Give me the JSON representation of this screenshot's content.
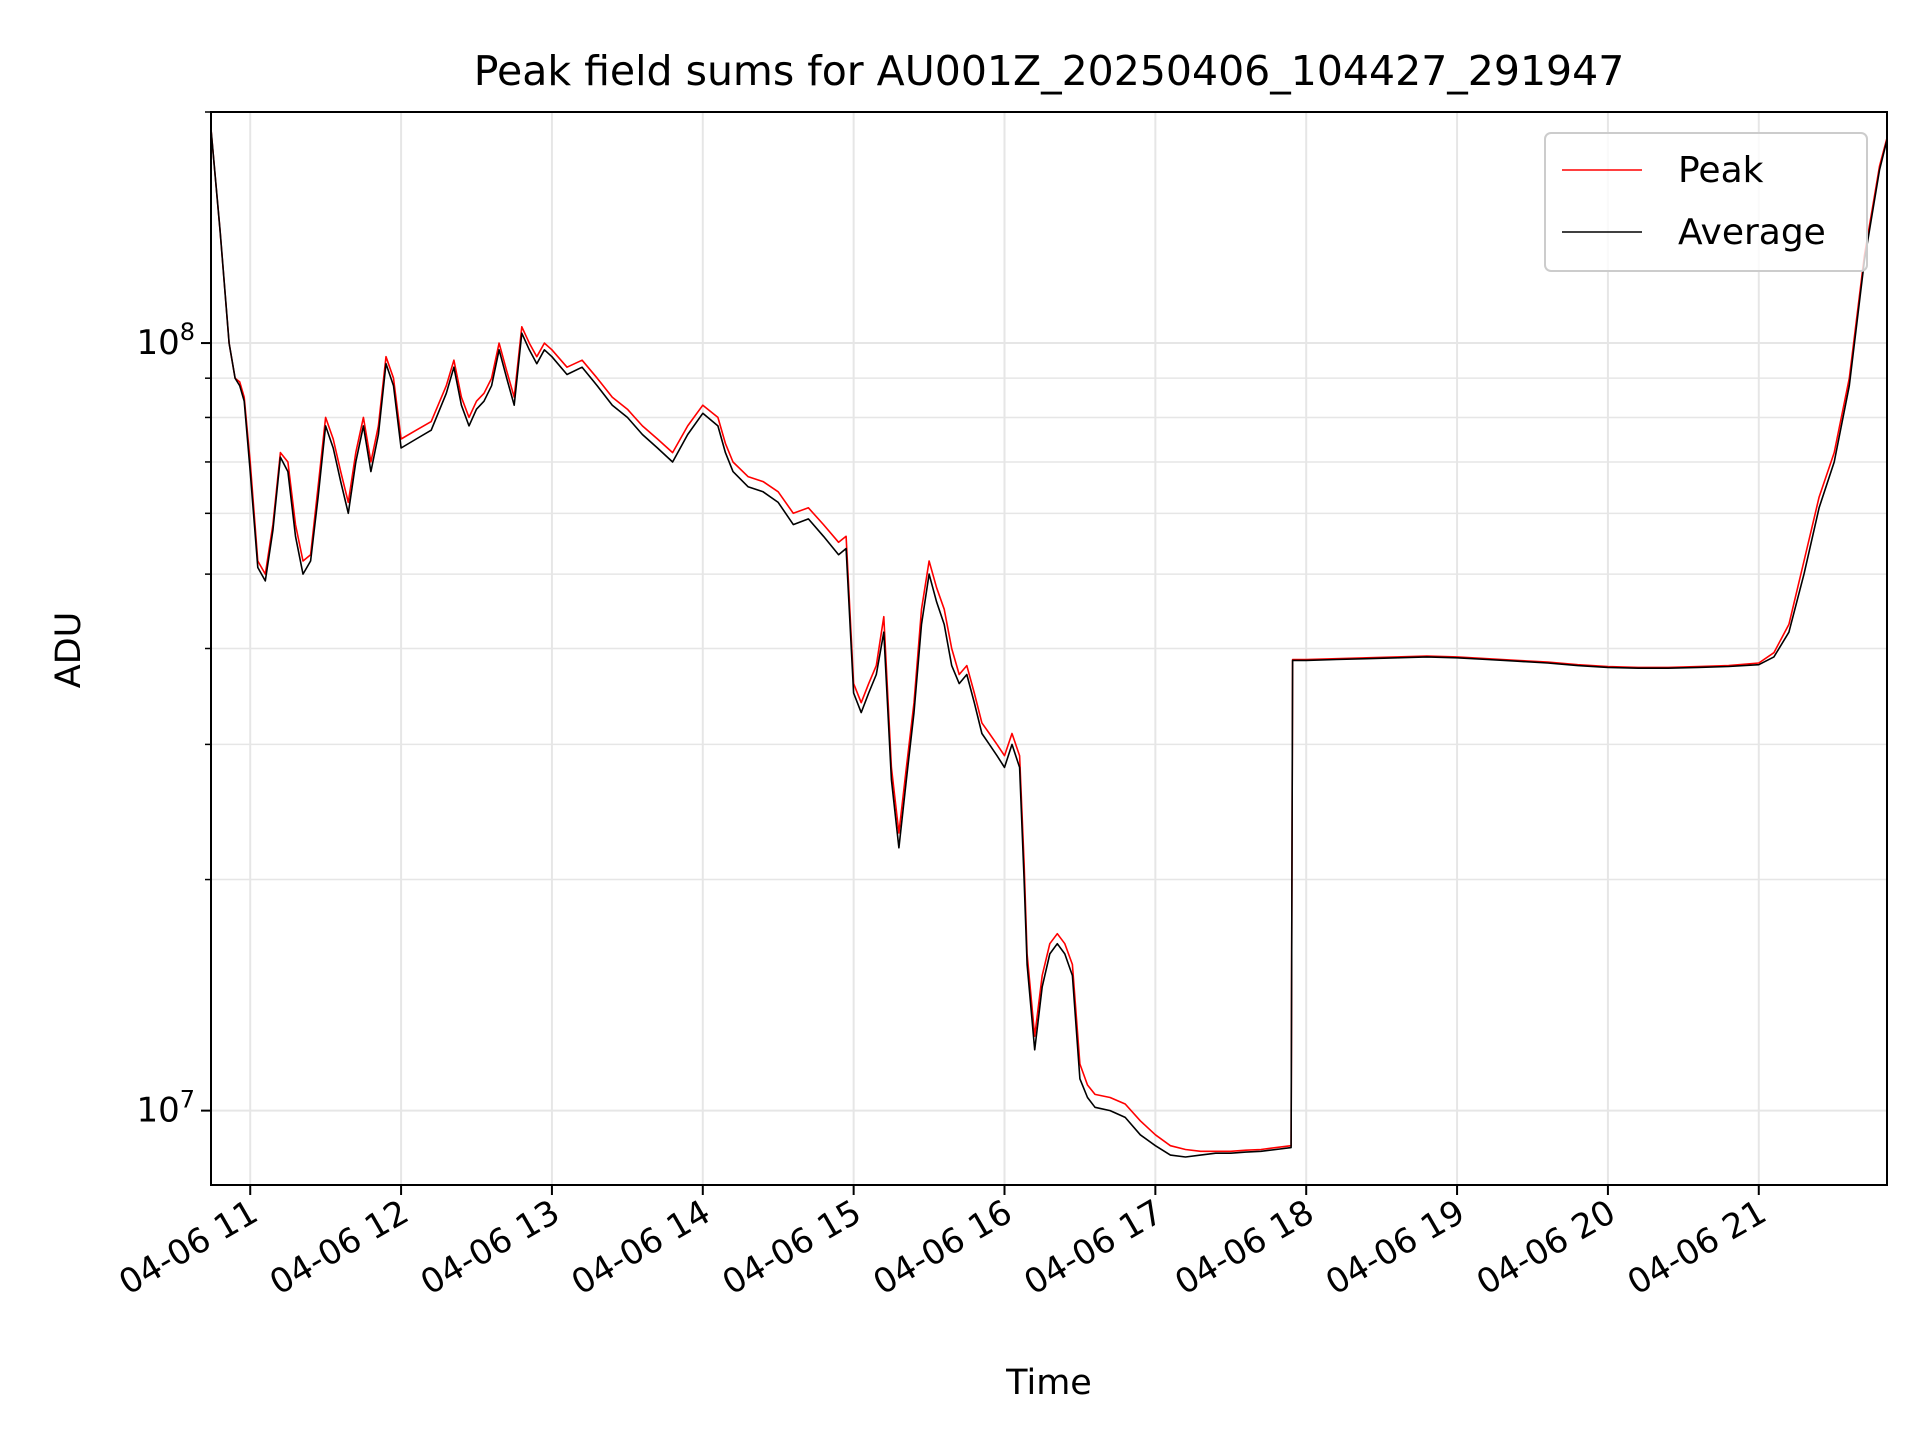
{
  "chart_data": {
    "type": "line",
    "title": "Peak field sums for AU001Z_20250406_104427_291947",
    "xlabel": "Time",
    "ylabel": "ADU",
    "yscale": "log",
    "ylim": [
      8000000,
      200000000
    ],
    "xlim_hours": [
      10.74,
      21.85
    ],
    "grid": true,
    "legend_position": "top-right",
    "x_tick_hours": [
      11,
      12,
      13,
      14,
      15,
      16,
      17,
      18,
      19,
      20,
      21
    ],
    "x_tick_labels": [
      "04-06 11",
      "04-06 12",
      "04-06 13",
      "04-06 14",
      "04-06 15",
      "04-06 16",
      "04-06 17",
      "04-06 18",
      "04-06 19",
      "04-06 20",
      "04-06 21"
    ],
    "y_major_ticks": [
      {
        "value": 10000000,
        "base": "10",
        "exp": "7"
      },
      {
        "value": 100000000,
        "base": "10",
        "exp": "8"
      }
    ],
    "series": [
      {
        "name": "Peak",
        "color": "#ff0000",
        "points": [
          [
            10.74,
            190000000
          ],
          [
            10.8,
            140000000
          ],
          [
            10.86,
            100000000
          ],
          [
            10.9,
            90000000
          ],
          [
            10.93,
            89000000
          ],
          [
            10.96,
            85000000
          ],
          [
            11.0,
            70000000
          ],
          [
            11.05,
            52000000
          ],
          [
            11.1,
            50000000
          ],
          [
            11.15,
            58000000
          ],
          [
            11.2,
            72000000
          ],
          [
            11.25,
            70000000
          ],
          [
            11.3,
            58000000
          ],
          [
            11.35,
            52000000
          ],
          [
            11.4,
            53000000
          ],
          [
            11.45,
            65000000
          ],
          [
            11.5,
            80000000
          ],
          [
            11.55,
            75000000
          ],
          [
            11.6,
            68000000
          ],
          [
            11.65,
            62000000
          ],
          [
            11.7,
            72000000
          ],
          [
            11.75,
            80000000
          ],
          [
            11.8,
            70000000
          ],
          [
            11.85,
            78000000
          ],
          [
            11.9,
            96000000
          ],
          [
            11.95,
            90000000
          ],
          [
            12.0,
            75000000
          ],
          [
            12.1,
            77000000
          ],
          [
            12.2,
            79000000
          ],
          [
            12.3,
            88000000
          ],
          [
            12.35,
            95000000
          ],
          [
            12.4,
            85000000
          ],
          [
            12.45,
            80000000
          ],
          [
            12.5,
            84000000
          ],
          [
            12.55,
            86000000
          ],
          [
            12.6,
            90000000
          ],
          [
            12.65,
            100000000
          ],
          [
            12.7,
            92000000
          ],
          [
            12.75,
            85000000
          ],
          [
            12.8,
            105000000
          ],
          [
            12.85,
            100000000
          ],
          [
            12.9,
            96000000
          ],
          [
            12.95,
            100000000
          ],
          [
            13.0,
            98000000
          ],
          [
            13.1,
            93000000
          ],
          [
            13.2,
            95000000
          ],
          [
            13.3,
            90000000
          ],
          [
            13.4,
            85000000
          ],
          [
            13.5,
            82000000
          ],
          [
            13.6,
            78000000
          ],
          [
            13.7,
            75000000
          ],
          [
            13.8,
            72000000
          ],
          [
            13.9,
            78000000
          ],
          [
            14.0,
            83000000
          ],
          [
            14.1,
            80000000
          ],
          [
            14.15,
            74000000
          ],
          [
            14.2,
            70000000
          ],
          [
            14.3,
            67000000
          ],
          [
            14.4,
            66000000
          ],
          [
            14.5,
            64000000
          ],
          [
            14.6,
            60000000
          ],
          [
            14.7,
            61000000
          ],
          [
            14.8,
            58000000
          ],
          [
            14.9,
            55000000
          ],
          [
            14.95,
            56000000
          ],
          [
            15.0,
            36000000
          ],
          [
            15.05,
            34000000
          ],
          [
            15.1,
            36000000
          ],
          [
            15.15,
            38000000
          ],
          [
            15.2,
            44000000
          ],
          [
            15.25,
            28000000
          ],
          [
            15.3,
            23000000
          ],
          [
            15.35,
            28000000
          ],
          [
            15.4,
            34000000
          ],
          [
            15.45,
            45000000
          ],
          [
            15.5,
            52000000
          ],
          [
            15.55,
            48000000
          ],
          [
            15.6,
            45000000
          ],
          [
            15.65,
            40000000
          ],
          [
            15.7,
            37000000
          ],
          [
            15.75,
            38000000
          ],
          [
            15.8,
            35000000
          ],
          [
            15.85,
            32000000
          ],
          [
            15.9,
            31000000
          ],
          [
            15.95,
            30000000
          ],
          [
            16.0,
            29000000
          ],
          [
            16.05,
            31000000
          ],
          [
            16.1,
            29000000
          ],
          [
            16.13,
            21000000
          ],
          [
            16.15,
            16000000
          ],
          [
            16.2,
            12500000
          ],
          [
            16.25,
            15000000
          ],
          [
            16.3,
            16500000
          ],
          [
            16.35,
            17000000
          ],
          [
            16.4,
            16500000
          ],
          [
            16.45,
            15500000
          ],
          [
            16.5,
            11500000
          ],
          [
            16.55,
            10800000
          ],
          [
            16.6,
            10500000
          ],
          [
            16.7,
            10400000
          ],
          [
            16.8,
            10200000
          ],
          [
            16.9,
            9700000
          ],
          [
            17.0,
            9300000
          ],
          [
            17.1,
            9000000
          ],
          [
            17.2,
            8900000
          ],
          [
            17.3,
            8850000
          ],
          [
            17.4,
            8850000
          ],
          [
            17.5,
            8850000
          ],
          [
            17.6,
            8880000
          ],
          [
            17.7,
            8900000
          ],
          [
            17.8,
            8950000
          ],
          [
            17.9,
            9000000
          ],
          [
            17.91,
            38700000
          ],
          [
            18.0,
            38700000
          ],
          [
            18.2,
            38800000
          ],
          [
            18.4,
            38900000
          ],
          [
            18.6,
            39000000
          ],
          [
            18.8,
            39100000
          ],
          [
            19.0,
            39000000
          ],
          [
            19.2,
            38800000
          ],
          [
            19.4,
            38600000
          ],
          [
            19.6,
            38400000
          ],
          [
            19.8,
            38100000
          ],
          [
            20.0,
            37900000
          ],
          [
            20.2,
            37800000
          ],
          [
            20.4,
            37800000
          ],
          [
            20.6,
            37900000
          ],
          [
            20.8,
            38000000
          ],
          [
            21.0,
            38300000
          ],
          [
            21.1,
            39500000
          ],
          [
            21.2,
            43000000
          ],
          [
            21.3,
            52000000
          ],
          [
            21.4,
            63000000
          ],
          [
            21.5,
            72000000
          ],
          [
            21.6,
            90000000
          ],
          [
            21.7,
            130000000
          ],
          [
            21.8,
            170000000
          ],
          [
            21.85,
            185000000
          ]
        ]
      },
      {
        "name": "Average",
        "color": "#000000",
        "points": [
          [
            10.74,
            190000000
          ],
          [
            10.8,
            140000000
          ],
          [
            10.86,
            100000000
          ],
          [
            10.9,
            90000000
          ],
          [
            10.93,
            88000000
          ],
          [
            10.96,
            84000000
          ],
          [
            11.0,
            68000000
          ],
          [
            11.05,
            51000000
          ],
          [
            11.1,
            49000000
          ],
          [
            11.15,
            57000000
          ],
          [
            11.2,
            71000000
          ],
          [
            11.25,
            68000000
          ],
          [
            11.3,
            56000000
          ],
          [
            11.35,
            50000000
          ],
          [
            11.4,
            52000000
          ],
          [
            11.45,
            63000000
          ],
          [
            11.5,
            78000000
          ],
          [
            11.55,
            73000000
          ],
          [
            11.6,
            66000000
          ],
          [
            11.65,
            60000000
          ],
          [
            11.7,
            70000000
          ],
          [
            11.75,
            78000000
          ],
          [
            11.8,
            68000000
          ],
          [
            11.85,
            76000000
          ],
          [
            11.9,
            94000000
          ],
          [
            11.95,
            88000000
          ],
          [
            12.0,
            73000000
          ],
          [
            12.1,
            75000000
          ],
          [
            12.2,
            77000000
          ],
          [
            12.3,
            86000000
          ],
          [
            12.35,
            93000000
          ],
          [
            12.4,
            83000000
          ],
          [
            12.45,
            78000000
          ],
          [
            12.5,
            82000000
          ],
          [
            12.55,
            84000000
          ],
          [
            12.6,
            88000000
          ],
          [
            12.65,
            98000000
          ],
          [
            12.7,
            90000000
          ],
          [
            12.75,
            83000000
          ],
          [
            12.8,
            103000000
          ],
          [
            12.85,
            98000000
          ],
          [
            12.9,
            94000000
          ],
          [
            12.95,
            98000000
          ],
          [
            13.0,
            96000000
          ],
          [
            13.1,
            91000000
          ],
          [
            13.2,
            93000000
          ],
          [
            13.3,
            88000000
          ],
          [
            13.4,
            83000000
          ],
          [
            13.5,
            80000000
          ],
          [
            13.6,
            76000000
          ],
          [
            13.7,
            73000000
          ],
          [
            13.8,
            70000000
          ],
          [
            13.9,
            76000000
          ],
          [
            14.0,
            81000000
          ],
          [
            14.1,
            78000000
          ],
          [
            14.15,
            72000000
          ],
          [
            14.2,
            68000000
          ],
          [
            14.3,
            65000000
          ],
          [
            14.4,
            64000000
          ],
          [
            14.5,
            62000000
          ],
          [
            14.6,
            58000000
          ],
          [
            14.7,
            59000000
          ],
          [
            14.8,
            56000000
          ],
          [
            14.9,
            53000000
          ],
          [
            14.95,
            54000000
          ],
          [
            15.0,
            35000000
          ],
          [
            15.05,
            33000000
          ],
          [
            15.1,
            35000000
          ],
          [
            15.15,
            37000000
          ],
          [
            15.2,
            42000000
          ],
          [
            15.25,
            27000000
          ],
          [
            15.3,
            22000000
          ],
          [
            15.35,
            27000000
          ],
          [
            15.4,
            33000000
          ],
          [
            15.45,
            43000000
          ],
          [
            15.5,
            50000000
          ],
          [
            15.55,
            46000000
          ],
          [
            15.6,
            43000000
          ],
          [
            15.65,
            38000000
          ],
          [
            15.7,
            36000000
          ],
          [
            15.75,
            37000000
          ],
          [
            15.8,
            34000000
          ],
          [
            15.85,
            31000000
          ],
          [
            15.9,
            30000000
          ],
          [
            15.95,
            29000000
          ],
          [
            16.0,
            28000000
          ],
          [
            16.05,
            30000000
          ],
          [
            16.1,
            28000000
          ],
          [
            16.13,
            20000000
          ],
          [
            16.15,
            15500000
          ],
          [
            16.2,
            12000000
          ],
          [
            16.25,
            14500000
          ],
          [
            16.3,
            16000000
          ],
          [
            16.35,
            16500000
          ],
          [
            16.4,
            16000000
          ],
          [
            16.45,
            15000000
          ],
          [
            16.5,
            11000000
          ],
          [
            16.55,
            10400000
          ],
          [
            16.6,
            10100000
          ],
          [
            16.7,
            10000000
          ],
          [
            16.8,
            9800000
          ],
          [
            16.9,
            9300000
          ],
          [
            17.0,
            9000000
          ],
          [
            17.1,
            8750000
          ],
          [
            17.2,
            8700000
          ],
          [
            17.3,
            8750000
          ],
          [
            17.4,
            8800000
          ],
          [
            17.5,
            8800000
          ],
          [
            17.6,
            8830000
          ],
          [
            17.7,
            8850000
          ],
          [
            17.8,
            8900000
          ],
          [
            17.9,
            8950000
          ],
          [
            17.91,
            38600000
          ],
          [
            18.0,
            38600000
          ],
          [
            18.2,
            38700000
          ],
          [
            18.4,
            38800000
          ],
          [
            18.6,
            38900000
          ],
          [
            18.8,
            39000000
          ],
          [
            19.0,
            38900000
          ],
          [
            19.2,
            38700000
          ],
          [
            19.4,
            38500000
          ],
          [
            19.6,
            38300000
          ],
          [
            19.8,
            38000000
          ],
          [
            20.0,
            37800000
          ],
          [
            20.2,
            37700000
          ],
          [
            20.4,
            37700000
          ],
          [
            20.6,
            37800000
          ],
          [
            20.8,
            37900000
          ],
          [
            21.0,
            38100000
          ],
          [
            21.1,
            39000000
          ],
          [
            21.2,
            42000000
          ],
          [
            21.3,
            50000000
          ],
          [
            21.4,
            61000000
          ],
          [
            21.5,
            70000000
          ],
          [
            21.6,
            88000000
          ],
          [
            21.7,
            128000000
          ],
          [
            21.8,
            168000000
          ],
          [
            21.85,
            184000000
          ]
        ]
      }
    ]
  }
}
